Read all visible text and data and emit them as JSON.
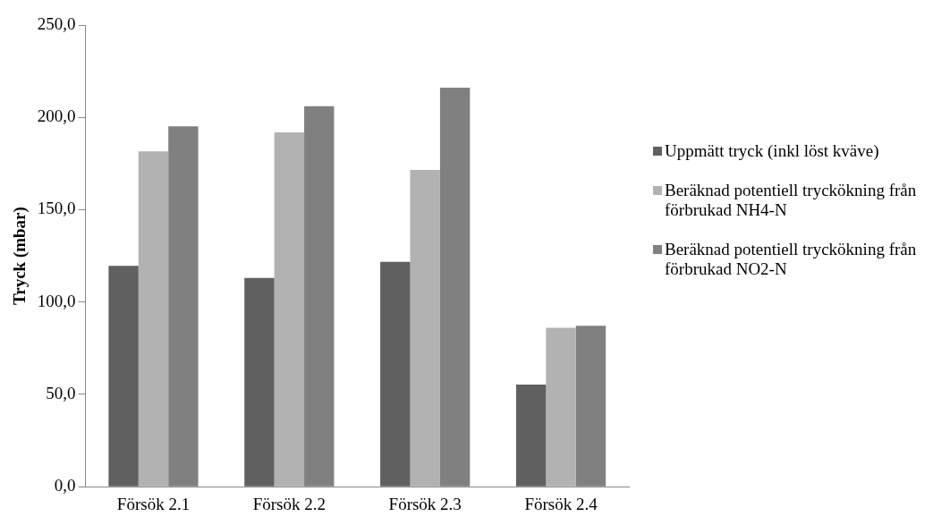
{
  "chart_data": {
    "type": "bar",
    "ylabel": "Tryck (mbar)",
    "categories": [
      "Försök 2.1",
      "Försök 2.2",
      "Försök 2.3",
      "Försök 2.4"
    ],
    "series": [
      {
        "name": "Uppmätt tryck (inkl löst kväve)",
        "color": "#606060",
        "values": [
          119.6,
          113.1,
          121.8,
          55.3
        ]
      },
      {
        "name": "Beräknad potentiell tryckökning från förbrukad NH4-N",
        "color": "#b2b2b2",
        "values": [
          181.6,
          191.9,
          171.6,
          86.1
        ]
      },
      {
        "name": "Beräknad potentiell tryckökning från förbrukad NO2-N",
        "color": "#808080",
        "values": [
          195.2,
          206.0,
          216.1,
          87.2
        ]
      }
    ],
    "ylim": [
      0,
      250
    ],
    "yticks": [
      {
        "value": 0,
        "label": "0,0"
      },
      {
        "value": 50,
        "label": "50,0"
      },
      {
        "value": 100,
        "label": "100,0"
      },
      {
        "value": 150,
        "label": "150,0"
      },
      {
        "value": 200,
        "label": "200,0"
      },
      {
        "value": 250,
        "label": "250,0"
      }
    ],
    "grid": false,
    "legend": "right"
  }
}
